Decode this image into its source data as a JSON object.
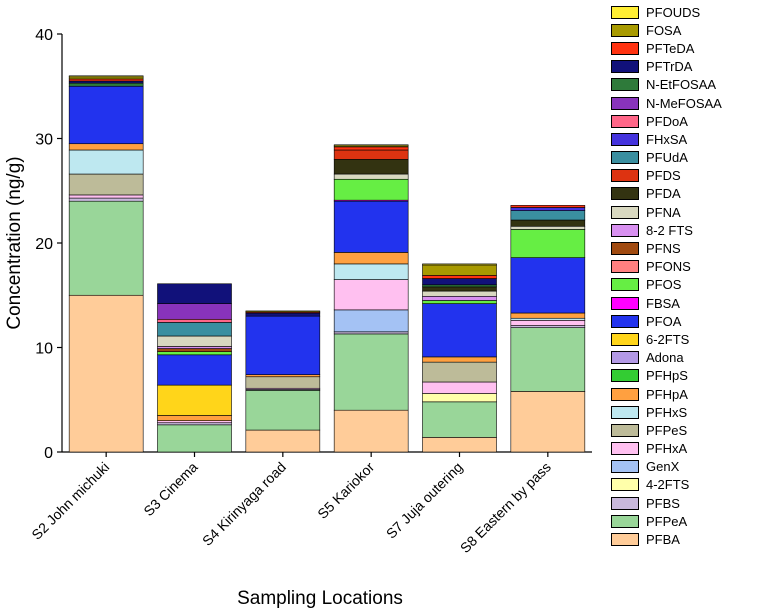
{
  "chart_data": {
    "type": "bar",
    "stacked": true,
    "xlabel": "Sampling Locations",
    "ylabel": "Concentration (ng/g)",
    "ylim": [
      0,
      40
    ],
    "yticks": [
      0,
      10,
      20,
      30,
      40
    ],
    "categories": [
      "S2 John michuki",
      "S3 Cinema",
      "S4 Kirinyaga road",
      "S5 Kariokor",
      "S7 Juja outering",
      "S8 Eastern by pass"
    ],
    "series": [
      {
        "name": "PFBA",
        "color": "#FFCC99",
        "values": [
          15.0,
          0,
          2.1,
          4.0,
          1.4,
          5.8
        ]
      },
      {
        "name": "PFPeA",
        "color": "#99D699",
        "values": [
          9.0,
          2.6,
          3.8,
          7.3,
          3.4,
          6.1
        ]
      },
      {
        "name": "PFBS",
        "color": "#C8B8DC",
        "values": [
          0.3,
          0.2,
          0.1,
          0.2,
          0,
          0.2
        ]
      },
      {
        "name": "4-2FTS",
        "color": "#FFFFAA",
        "values": [
          0,
          0,
          0,
          0,
          0.8,
          0
        ]
      },
      {
        "name": "GenX",
        "color": "#A4C2F4",
        "values": [
          0,
          0,
          0,
          2.1,
          0,
          0
        ]
      },
      {
        "name": "PFHxA",
        "color": "#FFC0F0",
        "values": [
          0.3,
          0.2,
          0.1,
          2.9,
          1.1,
          0.5
        ]
      },
      {
        "name": "PFPeS",
        "color": "#BDBB99",
        "values": [
          2.0,
          0,
          1.1,
          0,
          1.9,
          0
        ]
      },
      {
        "name": "PFHxS",
        "color": "#BEE8F0",
        "values": [
          2.3,
          0,
          0,
          1.5,
          0,
          0.2
        ]
      },
      {
        "name": "PFHpA",
        "color": "#FFA040",
        "values": [
          0.6,
          0.5,
          0.2,
          1.1,
          0.5,
          0.5
        ]
      },
      {
        "name": "PFHpS",
        "color": "#33CC33",
        "values": [
          0,
          0,
          0,
          0,
          0,
          0
        ]
      },
      {
        "name": "Adona",
        "color": "#B399E6",
        "values": [
          0,
          0,
          0,
          0,
          0,
          0
        ]
      },
      {
        "name": "6-2FTS",
        "color": "#FFD51A",
        "values": [
          0,
          2.9,
          0,
          0,
          0,
          0
        ]
      },
      {
        "name": "PFOA",
        "color": "#2233EE",
        "values": [
          5.5,
          2.9,
          5.6,
          4.9,
          5.1,
          5.3
        ]
      },
      {
        "name": "FBSA",
        "color": "#FF00FF",
        "values": [
          0,
          0,
          0,
          0.1,
          0,
          0
        ]
      },
      {
        "name": "PFOS",
        "color": "#66EE44",
        "values": [
          0,
          0.3,
          0,
          2.0,
          0.3,
          2.7
        ]
      },
      {
        "name": "PFONS",
        "color": "#FF8080",
        "values": [
          0,
          0,
          0,
          0,
          0,
          0
        ]
      },
      {
        "name": "PFNS",
        "color": "#A04A10",
        "values": [
          0,
          0.3,
          0,
          0,
          0,
          0
        ]
      },
      {
        "name": "8-2 FTS",
        "color": "#D890F0",
        "values": [
          0,
          0.2,
          0,
          0,
          0.4,
          0
        ]
      },
      {
        "name": "PFNA",
        "color": "#D8D8C0",
        "values": [
          0,
          1.0,
          0,
          0.5,
          0.5,
          0.3
        ]
      },
      {
        "name": "PFDA",
        "color": "#333311",
        "values": [
          0,
          0,
          0,
          1.4,
          0.4,
          0.6
        ]
      },
      {
        "name": "PFDS",
        "color": "#DD3311",
        "values": [
          0,
          0,
          0,
          0.9,
          0,
          0
        ]
      },
      {
        "name": "PFUdA",
        "color": "#3A8FA0",
        "values": [
          0,
          1.3,
          0,
          0,
          0,
          0.9
        ]
      },
      {
        "name": "FHxSA",
        "color": "#4433DD",
        "values": [
          0,
          0,
          0,
          0,
          0,
          0.3
        ]
      },
      {
        "name": "PFDoA",
        "color": "#FF6688",
        "values": [
          0,
          0.3,
          0,
          0,
          0,
          0
        ]
      },
      {
        "name": "N-MeFOSAA",
        "color": "#8833BB",
        "values": [
          0,
          1.5,
          0,
          0,
          0,
          0
        ]
      },
      {
        "name": "N-EtFOSAA",
        "color": "#2E7A3A",
        "values": [
          0.3,
          0,
          0,
          0,
          0.2,
          0
        ]
      },
      {
        "name": "PFTrDA",
        "color": "#11117A",
        "values": [
          0.2,
          1.9,
          0.3,
          0,
          0.6,
          0
        ]
      },
      {
        "name": "PFTeDA",
        "color": "#FF3311",
        "values": [
          0.2,
          0,
          0.1,
          0.3,
          0.3,
          0.2
        ]
      },
      {
        "name": "FOSA",
        "color": "#A89A00",
        "values": [
          0.2,
          0,
          0.1,
          0.1,
          1.0,
          0
        ]
      },
      {
        "name": "PFOUDS",
        "color": "#FFEE33",
        "values": [
          0.1,
          0,
          0,
          0.1,
          0.1,
          0
        ]
      }
    ]
  }
}
